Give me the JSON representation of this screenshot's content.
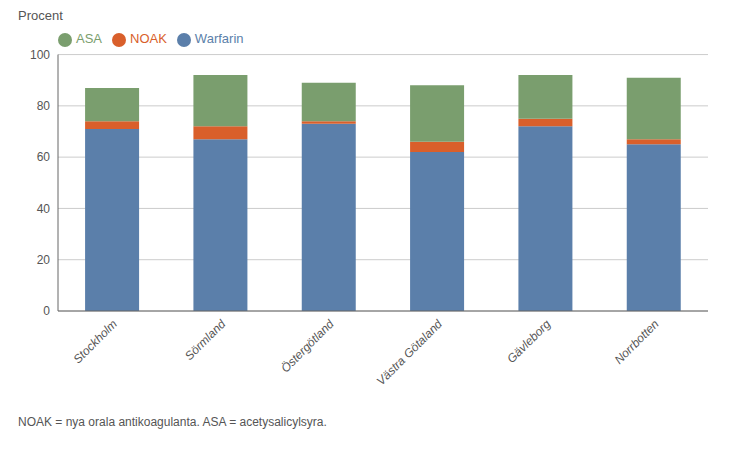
{
  "chart_data": {
    "type": "bar",
    "stacked": true,
    "ylabel": "Procent",
    "annotations": [
      "NOAK = nya orala antikoagulanta.   ASA = acetysalicylsyra."
    ],
    "categories": [
      "Stockholm",
      "Sörmland",
      "Östergötland",
      "Västra Götaland",
      "Gävleborg",
      "Norrbotten"
    ],
    "series": [
      {
        "name": "Warfarin",
        "color": "#5b7faa",
        "values": [
          71,
          67,
          73,
          62,
          72,
          65
        ]
      },
      {
        "name": "NOAK",
        "color": "#d95f2b",
        "values": [
          3,
          5,
          1,
          4,
          3,
          2
        ]
      },
      {
        "name": "ASA",
        "color": "#7a9e6e",
        "values": [
          13,
          20,
          15,
          22,
          17,
          24
        ]
      }
    ],
    "ylim": [
      0,
      100
    ],
    "yticks": [
      0,
      20,
      40,
      60,
      80,
      100
    ],
    "grid": true,
    "legend": "upper left"
  }
}
